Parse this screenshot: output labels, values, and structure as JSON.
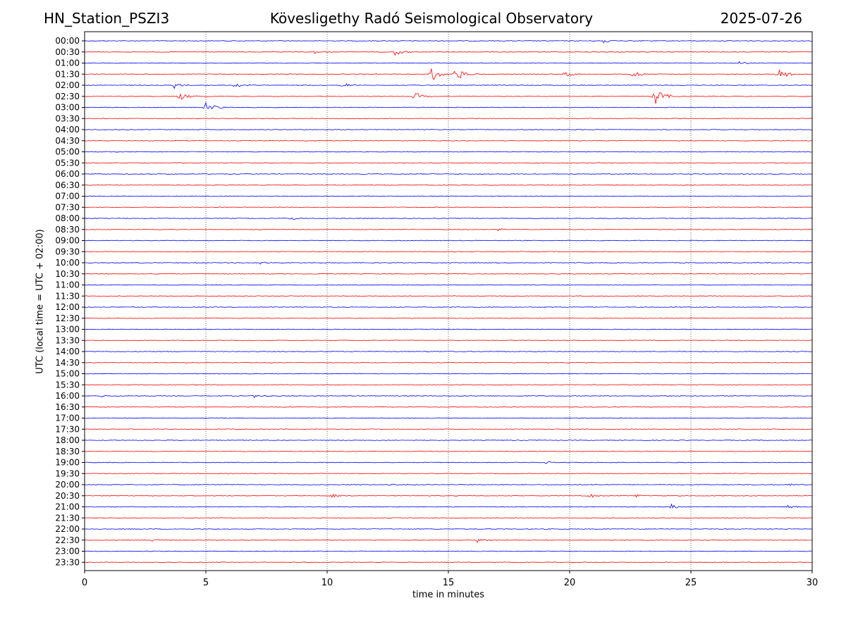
{
  "header": {
    "station": "HN_Station_PSZI3",
    "observatory": "Kövesligethy Radó Seismological Observatory",
    "date": "2025-07-26"
  },
  "chart_data": {
    "type": "line",
    "title": "Kövesligethy Radó Seismological Observatory",
    "xlabel": "time in minutes",
    "ylabel": "UTC (local time = UTC + 02:00)",
    "xlim": [
      0,
      30
    ],
    "x_ticks": [
      "0",
      "5",
      "10",
      "15",
      "20",
      "25",
      "30"
    ],
    "grid": "vertical dotted lines at 5-minute intervals",
    "row_colors": [
      "#0000ff",
      "#ff0000"
    ],
    "rows": [
      "00:00",
      "00:30",
      "01:00",
      "01:30",
      "02:00",
      "02:30",
      "03:00",
      "03:30",
      "04:00",
      "04:30",
      "05:00",
      "05:30",
      "06:00",
      "06:30",
      "07:00",
      "07:30",
      "08:00",
      "08:30",
      "09:00",
      "09:30",
      "10:00",
      "10:30",
      "11:00",
      "11:30",
      "12:00",
      "12:30",
      "13:00",
      "13:30",
      "14:00",
      "14:30",
      "15:00",
      "15:30",
      "16:00",
      "16:30",
      "17:00",
      "17:30",
      "18:00",
      "18:30",
      "19:00",
      "19:30",
      "20:00",
      "20:30",
      "21:00",
      "21:30",
      "22:00",
      "22:30",
      "23:00",
      "23:30"
    ],
    "events": [
      {
        "row": "00:00",
        "minute": 21.4,
        "amplitude": 0.3
      },
      {
        "row": "00:30",
        "minute": 12.8,
        "amplitude": 0.6
      },
      {
        "row": "00:30",
        "minute": 9.5,
        "amplitude": 0.3
      },
      {
        "row": "01:00",
        "minute": 27.0,
        "amplitude": 0.3
      },
      {
        "row": "01:30",
        "minute": 14.3,
        "amplitude": 1.3
      },
      {
        "row": "01:30",
        "minute": 15.3,
        "amplitude": 1.1
      },
      {
        "row": "01:30",
        "minute": 19.8,
        "amplitude": 0.6
      },
      {
        "row": "01:30",
        "minute": 22.6,
        "amplitude": 0.5
      },
      {
        "row": "01:30",
        "minute": 28.6,
        "amplitude": 1.0
      },
      {
        "row": "02:00",
        "minute": 3.7,
        "amplitude": 0.5
      },
      {
        "row": "02:00",
        "minute": 6.2,
        "amplitude": 0.5
      },
      {
        "row": "02:00",
        "minute": 10.6,
        "amplitude": 0.5
      },
      {
        "row": "02:30",
        "minute": 3.9,
        "amplitude": 0.6
      },
      {
        "row": "02:30",
        "minute": 13.6,
        "amplitude": 0.8
      },
      {
        "row": "02:30",
        "minute": 23.5,
        "amplitude": 1.6
      },
      {
        "row": "03:00",
        "minute": 5.0,
        "amplitude": 1.0
      },
      {
        "row": "05:00",
        "minute": 1.0,
        "amplitude": 0.2
      },
      {
        "row": "08:00",
        "minute": 8.5,
        "amplitude": 0.3
      },
      {
        "row": "08:30",
        "minute": 17.0,
        "amplitude": 0.3
      },
      {
        "row": "10:00",
        "minute": 7.2,
        "amplitude": 0.3
      },
      {
        "row": "16:00",
        "minute": 0.7,
        "amplitude": 0.2
      },
      {
        "row": "16:00",
        "minute": 7.0,
        "amplitude": 0.3
      },
      {
        "row": "19:00",
        "minute": 19.0,
        "amplitude": 0.2
      },
      {
        "row": "20:00",
        "minute": 12.5,
        "amplitude": 0.4
      },
      {
        "row": "20:00",
        "minute": 29.0,
        "amplitude": 0.3
      },
      {
        "row": "20:30",
        "minute": 10.2,
        "amplitude": 0.3
      },
      {
        "row": "20:30",
        "minute": 20.8,
        "amplitude": 0.4
      },
      {
        "row": "20:30",
        "minute": 22.7,
        "amplitude": 0.3
      },
      {
        "row": "21:00",
        "minute": 24.2,
        "amplitude": 0.4
      },
      {
        "row": "21:00",
        "minute": 29.0,
        "amplitude": 0.3
      },
      {
        "row": "22:30",
        "minute": 2.8,
        "amplitude": 0.3
      },
      {
        "row": "22:30",
        "minute": 16.2,
        "amplitude": 0.3
      },
      {
        "row": "23:30",
        "minute": 14.8,
        "amplitude": 0.15
      }
    ]
  }
}
